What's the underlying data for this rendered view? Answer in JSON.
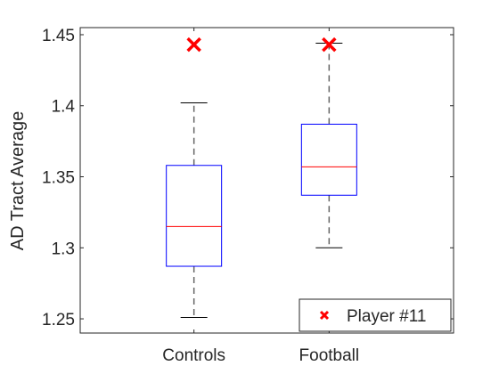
{
  "chart_data": {
    "type": "box",
    "title": "",
    "xlabel": "",
    "ylabel": "AD Tract Average",
    "ylim": [
      1.24,
      1.455
    ],
    "yticks": [
      "1.25",
      "1.3",
      "1.35",
      "1.4",
      "1.45"
    ],
    "grid": false,
    "legend_position": "bottom-right",
    "categories": [
      "Controls",
      "Football"
    ],
    "boxes": [
      {
        "category": "Controls",
        "whisker_low": 1.251,
        "q1": 1.287,
        "median": 1.315,
        "q3": 1.358,
        "whisker_high": 1.402
      },
      {
        "category": "Football",
        "whisker_low": 1.3,
        "q1": 1.337,
        "median": 1.357,
        "q3": 1.387,
        "whisker_high": 1.444
      }
    ],
    "series": [
      {
        "name": "Player #11",
        "marker": "x",
        "points": [
          {
            "category": "Controls",
            "y": 1.443
          },
          {
            "category": "Football",
            "y": 1.443
          }
        ]
      }
    ],
    "colors": {
      "box": "#0000ff",
      "median": "#ff0000",
      "whisker": "#000000",
      "marker": "#ff0000",
      "axis": "#262626"
    }
  }
}
